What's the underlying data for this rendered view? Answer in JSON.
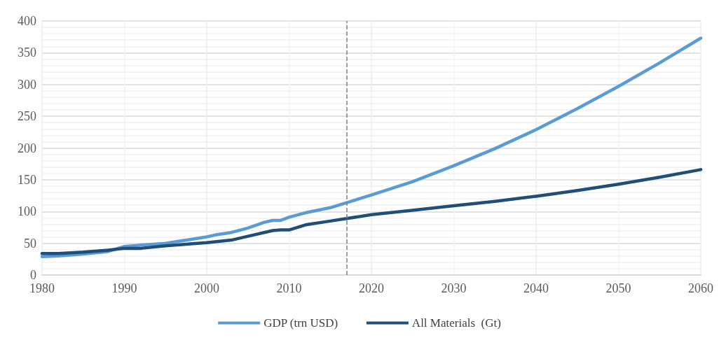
{
  "chart_data": {
    "type": "line",
    "xlim": [
      1980,
      2060
    ],
    "xticks": [
      1980,
      1990,
      2000,
      2010,
      2020,
      2030,
      2040,
      2050,
      2060
    ],
    "ylim": [
      0,
      400
    ],
    "yticks": [
      0,
      50,
      100,
      150,
      200,
      250,
      300,
      350,
      400
    ],
    "grid": true,
    "legend": "bottom",
    "marker": "none",
    "line_style": "solid",
    "series": [
      {
        "name": "GDP (trn USD)",
        "color": "#5b9bd5",
        "x": [
          1980,
          1982,
          1985,
          1988,
          1990,
          1992,
          1995,
          1998,
          2000,
          2001,
          2003,
          2005,
          2007,
          2008,
          2009,
          2010,
          2012,
          2015,
          2017,
          2020,
          2025,
          2030,
          2035,
          2040,
          2045,
          2050,
          2055,
          2060
        ],
        "values": [
          29,
          30,
          33,
          37,
          45,
          47,
          50,
          56,
          60,
          63,
          67,
          74,
          83,
          86,
          86,
          91,
          98,
          106,
          114,
          126,
          147,
          172,
          199,
          229,
          262,
          297,
          334,
          373
        ]
      },
      {
        "name": "All Materials  (Gt)",
        "color": "#1f4e79",
        "x": [
          1980,
          1982,
          1985,
          1988,
          1990,
          1992,
          1995,
          1998,
          2000,
          2003,
          2005,
          2008,
          2009,
          2010,
          2012,
          2015,
          2017,
          2020,
          2025,
          2030,
          2035,
          2040,
          2045,
          2050,
          2055,
          2060
        ],
        "values": [
          34,
          34,
          36,
          39,
          42,
          42,
          46,
          49,
          51,
          55,
          61,
          70,
          71,
          71,
          79,
          85,
          89,
          95,
          102,
          109,
          116,
          124,
          133,
          143,
          154,
          166
        ]
      }
    ],
    "ref_lines": [
      {
        "axis": "x",
        "value": 2017,
        "label": null,
        "color": "#7f7f7f",
        "line_style": "dashed"
      }
    ]
  }
}
